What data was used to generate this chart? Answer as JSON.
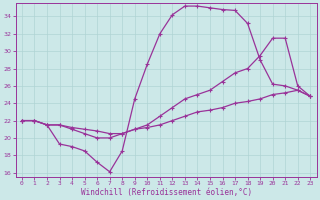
{
  "xlabel": "Windchill (Refroidissement éolien,°C)",
  "bg_color": "#cce8e8",
  "grid_color": "#aacccc",
  "line_color": "#993399",
  "xlim": [
    -0.5,
    23.5
  ],
  "ylim": [
    15.5,
    35.5
  ],
  "xtick_labels": [
    "0",
    "1",
    "2",
    "3",
    "4",
    "5",
    "6",
    "7",
    "8",
    "9",
    "10",
    "11",
    "12",
    "13",
    "14",
    "15",
    "16",
    "17",
    "18",
    "19",
    "20",
    "21",
    "22",
    "23"
  ],
  "xticks": [
    0,
    1,
    2,
    3,
    4,
    5,
    6,
    7,
    8,
    9,
    10,
    11,
    12,
    13,
    14,
    15,
    16,
    17,
    18,
    19,
    20,
    21,
    22,
    23
  ],
  "yticks": [
    16,
    18,
    20,
    22,
    24,
    26,
    28,
    30,
    32,
    34
  ],
  "line1_x": [
    0,
    1,
    2,
    3,
    4,
    5,
    6,
    7,
    8,
    9,
    10,
    11,
    12,
    13,
    14,
    15,
    16,
    17,
    18,
    19,
    20,
    21,
    22,
    23
  ],
  "line1_y": [
    22,
    22,
    21.5,
    19.3,
    19.0,
    18.5,
    17.2,
    16.1,
    18.5,
    24.5,
    28.5,
    32,
    34.2,
    35.2,
    35.2,
    35.0,
    34.8,
    34.7,
    33.2,
    29.0,
    26.2,
    26.0,
    25.5,
    24.8
  ],
  "line2_x": [
    0,
    1,
    2,
    3,
    4,
    5,
    6,
    7,
    8,
    9,
    10,
    11,
    12,
    13,
    14,
    15,
    16,
    17,
    18,
    19,
    20,
    21,
    22,
    23
  ],
  "line2_y": [
    22,
    22,
    21.5,
    21.5,
    21.0,
    20.5,
    20.0,
    20.0,
    20.5,
    21.0,
    21.5,
    22.5,
    23.5,
    24.5,
    25.0,
    25.5,
    26.5,
    27.5,
    28.0,
    29.5,
    31.5,
    31.5,
    26.0,
    24.8
  ],
  "line3_x": [
    0,
    1,
    2,
    3,
    4,
    5,
    6,
    7,
    8,
    9,
    10,
    11,
    12,
    13,
    14,
    15,
    16,
    17,
    18,
    19,
    20,
    21,
    22,
    23
  ],
  "line3_y": [
    22,
    22,
    21.5,
    21.5,
    21.2,
    21.0,
    20.8,
    20.5,
    20.5,
    21.0,
    21.2,
    21.5,
    22.0,
    22.5,
    23.0,
    23.2,
    23.5,
    24.0,
    24.2,
    24.5,
    25.0,
    25.2,
    25.5,
    24.8
  ]
}
